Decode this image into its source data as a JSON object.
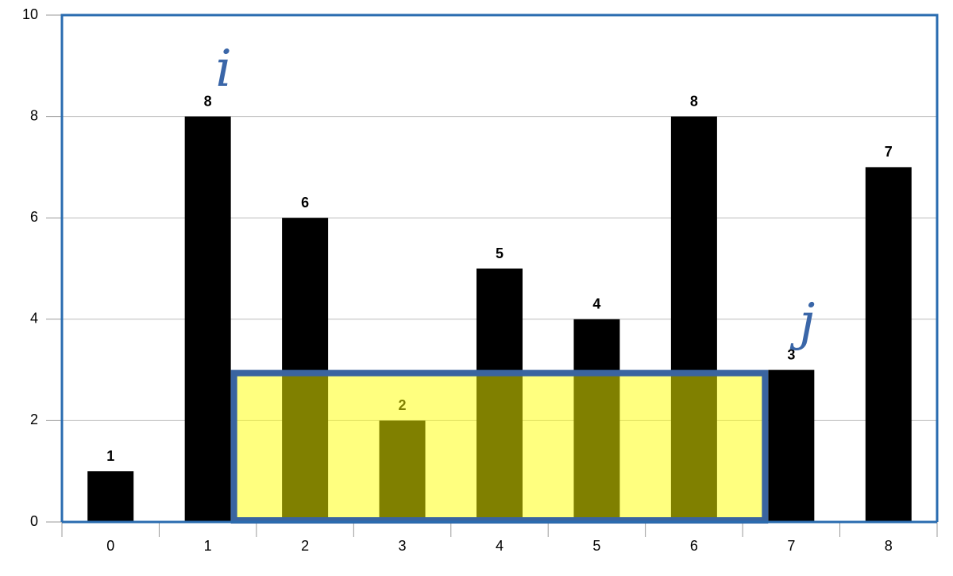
{
  "chart_data": {
    "type": "bar",
    "categories": [
      "0",
      "1",
      "2",
      "3",
      "4",
      "5",
      "6",
      "7",
      "8"
    ],
    "values": [
      1,
      8,
      6,
      2,
      5,
      4,
      8,
      3,
      7
    ],
    "color": "#000000",
    "ylim": [
      0,
      10
    ],
    "yticks": [
      0,
      2,
      4,
      6,
      8,
      10
    ],
    "grid": true,
    "highlight": {
      "start": 1,
      "end": 7,
      "height": 3,
      "color": "#ffff00",
      "border_color": "#3a64a0"
    },
    "annotations": [
      {
        "text": "i",
        "index": 1
      },
      {
        "text": "j",
        "index": 7
      }
    ]
  }
}
